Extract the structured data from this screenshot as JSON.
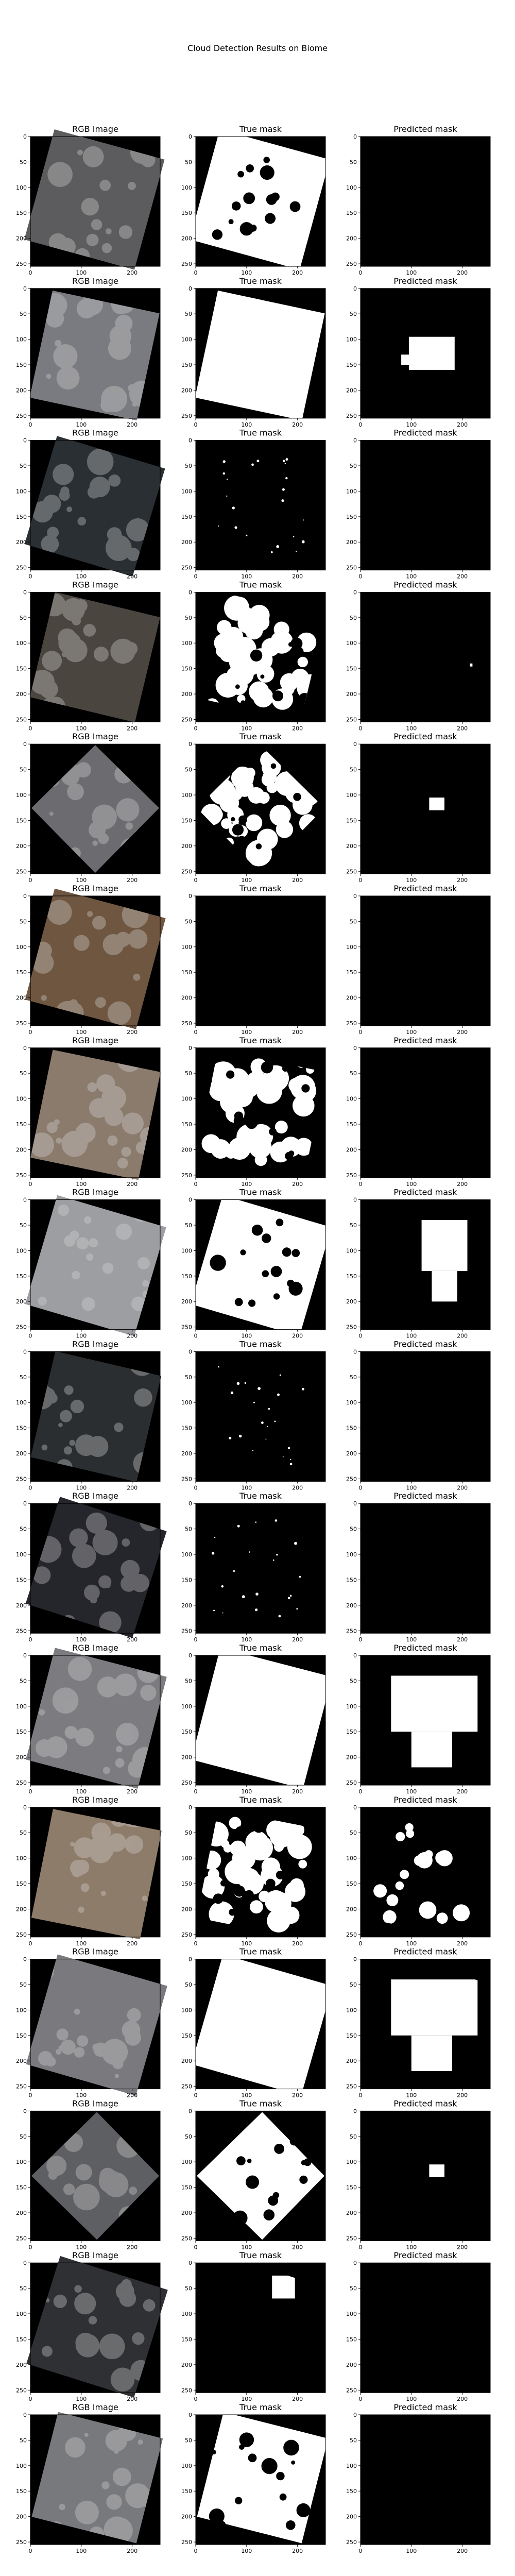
{
  "figure_title": "Cloud Detection Results on Biome",
  "panel_titles": [
    "RGB Image",
    "True mask",
    "Predicted mask"
  ],
  "colors": {
    "background": "#ffffff",
    "frame": "#000000",
    "mask_on": "#ffffff",
    "mask_off": "#000000"
  },
  "chart_data": {
    "type": "image_grid",
    "title": "Cloud Detection Results on Biome",
    "rows": 16,
    "columns": 3,
    "column_titles": [
      "RGB Image",
      "True mask",
      "Predicted mask"
    ],
    "axes": {
      "xlim": [
        0,
        255
      ],
      "ylim": [
        255,
        0
      ],
      "x_ticks": [
        0,
        100,
        200
      ],
      "y_ticks": [
        0,
        50,
        100,
        150,
        200,
        250
      ]
    },
    "samples": [
      {
        "rgb": "#5c5c5e",
        "footprint": "tilted",
        "true_mask": "mostly_cloud",
        "pred_mask": "none"
      },
      {
        "rgb": "#7a7b80",
        "footprint": "tilted",
        "true_mask": "full_cloud",
        "pred_mask": "partial_center"
      },
      {
        "rgb": "#2a2f33",
        "footprint": "tilted",
        "true_mask": "sparse_specks",
        "pred_mask": "none"
      },
      {
        "rgb": "#4b4540",
        "footprint": "tilted",
        "true_mask": "partial_cloud",
        "pred_mask": "tiny_speck"
      },
      {
        "rgb": "#6c6c70",
        "footprint": "diamond",
        "true_mask": "partial_cloud",
        "pred_mask": "small_patch"
      },
      {
        "rgb": "#6e5640",
        "footprint": "tilted",
        "true_mask": "none",
        "pred_mask": "none"
      },
      {
        "rgb": "#8a7b6d",
        "footprint": "tilted",
        "true_mask": "partial_cloud",
        "pred_mask": "none"
      },
      {
        "rgb": "#9d9ea2",
        "footprint": "tilted",
        "true_mask": "mostly_cloud",
        "pred_mask": "partial_right"
      },
      {
        "rgb": "#2b2e30",
        "footprint": "tilted",
        "true_mask": "sparse_specks",
        "pred_mask": "none"
      },
      {
        "rgb": "#25262b",
        "footprint": "tilted",
        "true_mask": "sparse_specks",
        "pred_mask": "none"
      },
      {
        "rgb": "#7c7c80",
        "footprint": "tilted",
        "true_mask": "full_cloud",
        "pred_mask": "large_patch"
      },
      {
        "rgb": "#8e7c6a",
        "footprint": "tilted",
        "true_mask": "partial_cloud",
        "pred_mask": "partial_scattered"
      },
      {
        "rgb": "#7a7a7e",
        "footprint": "tilted",
        "true_mask": "full_cloud",
        "pred_mask": "large_patch"
      },
      {
        "rgb": "#5e5f63",
        "footprint": "diamond",
        "true_mask": "mostly_cloud",
        "pred_mask": "small_patch"
      },
      {
        "rgb": "#2f3034",
        "footprint": "tilted",
        "true_mask": "small_blob",
        "pred_mask": "none"
      },
      {
        "rgb": "#78797c",
        "footprint": "tilted",
        "true_mask": "mostly_cloud",
        "pred_mask": "none"
      }
    ]
  }
}
